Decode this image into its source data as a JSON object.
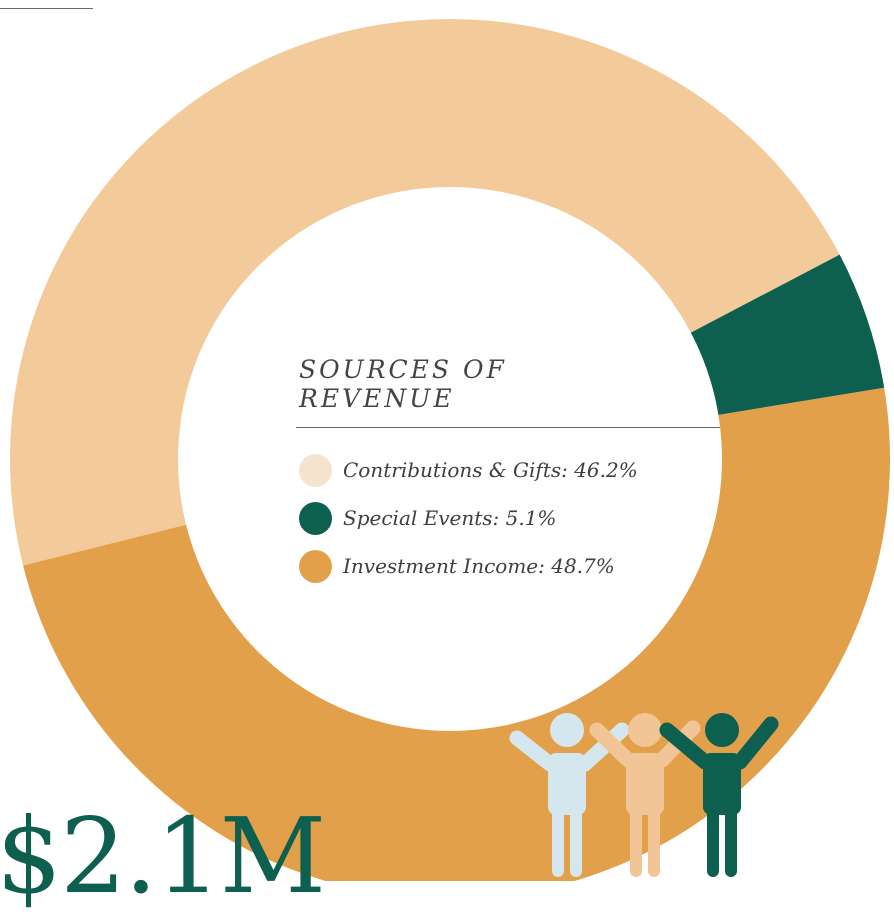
{
  "chart_data": {
    "type": "pie",
    "title": "SOURCES OF REVENUE",
    "categories": [
      "Contributions & Gifts",
      "Special Events",
      "Investment Income"
    ],
    "values": [
      46.2,
      5.1,
      48.7
    ],
    "unit": "%",
    "donut": true,
    "legend_labels": [
      "Contributions & Gifts: 46.2%",
      "Special Events: 5.1%",
      "Investment Income: 48.7%"
    ],
    "colors": [
      "#f3ca9a",
      "#0d5f4f",
      "#e3a04b"
    ]
  },
  "legend_swatch_colors": [
    "#f6e3cd",
    "#0d5f4f",
    "#e3a04b"
  ],
  "total_label": "$2.1M",
  "people_colors": [
    "#d5e7ee",
    "#f2c596",
    "#0d5f4f"
  ],
  "people_icons": [
    "person-raised-arms-icon",
    "person-raised-arms-icon",
    "person-raised-arms-icon"
  ]
}
